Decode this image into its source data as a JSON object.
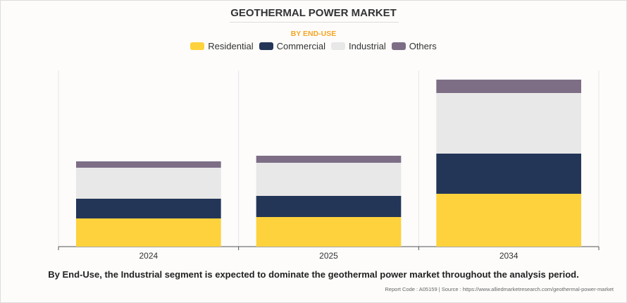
{
  "chart_data": {
    "type": "bar",
    "stacked": true,
    "title": "GEOTHERMAL POWER MARKET",
    "subtitle": "BY END-USE",
    "categories": [
      "2024",
      "2025",
      "2034"
    ],
    "series": [
      {
        "name": "Residential",
        "color": "#fdd23c",
        "values": [
          40,
          42,
          75
        ]
      },
      {
        "name": "Commercial",
        "color": "#243658",
        "values": [
          28,
          30,
          57
        ]
      },
      {
        "name": "Industrial",
        "color": "#e8e8e8",
        "values": [
          44,
          47,
          86
        ]
      },
      {
        "name": "Others",
        "color": "#7d6e86",
        "values": [
          9,
          10,
          19
        ]
      }
    ],
    "ylim": [
      0,
      250
    ],
    "grid": "vertical separators",
    "legend": "top-center",
    "xlabel": "",
    "ylabel": ""
  },
  "caption": "By End-Use, the Industrial segment is expected to dominate the geothermal power market throughout the analysis period.",
  "source": "Report Code : A05159  |  Source : https://www.alliedmarketresearch.com/geothermal-power-market"
}
